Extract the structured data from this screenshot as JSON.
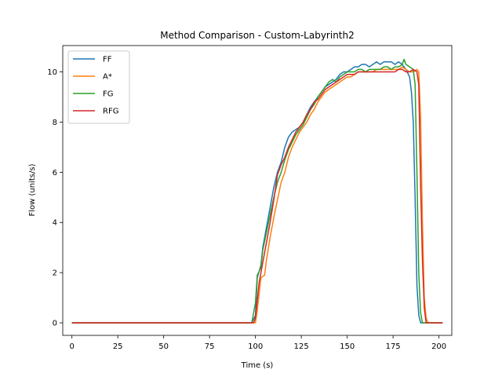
{
  "chart_data": {
    "type": "line",
    "title": "Method Comparison - Custom-Labyrinth2",
    "xlabel": "Time (s)",
    "ylabel": "Flow (units/s)",
    "xlim": [
      -5,
      207
    ],
    "ylim": [
      -0.5,
      11.05
    ],
    "xticks": [
      0,
      25,
      50,
      75,
      100,
      125,
      150,
      175,
      200
    ],
    "yticks": [
      0,
      2,
      4,
      6,
      8,
      10
    ],
    "grid": false,
    "legend_position": "top-left",
    "series": [
      {
        "name": "FF",
        "color": "#1f77b4",
        "points": [
          [
            0,
            0
          ],
          [
            98,
            0
          ],
          [
            100,
            0.3
          ],
          [
            101,
            1.8
          ],
          [
            103,
            2.3
          ],
          [
            104,
            3.0
          ],
          [
            106,
            3.8
          ],
          [
            108,
            4.6
          ],
          [
            110,
            5.4
          ],
          [
            112,
            6.0
          ],
          [
            114,
            6.4
          ],
          [
            116,
            7.0
          ],
          [
            118,
            7.4
          ],
          [
            120,
            7.6
          ],
          [
            122,
            7.7
          ],
          [
            124,
            7.8
          ],
          [
            126,
            8.0
          ],
          [
            128,
            8.3
          ],
          [
            130,
            8.6
          ],
          [
            132,
            8.8
          ],
          [
            134,
            9.0
          ],
          [
            136,
            9.2
          ],
          [
            138,
            9.4
          ],
          [
            140,
            9.5
          ],
          [
            142,
            9.6
          ],
          [
            144,
            9.7
          ],
          [
            146,
            9.9
          ],
          [
            148,
            10.0
          ],
          [
            150,
            10.0
          ],
          [
            152,
            10.1
          ],
          [
            154,
            10.2
          ],
          [
            156,
            10.2
          ],
          [
            158,
            10.3
          ],
          [
            160,
            10.3
          ],
          [
            162,
            10.2
          ],
          [
            164,
            10.3
          ],
          [
            166,
            10.4
          ],
          [
            168,
            10.3
          ],
          [
            170,
            10.4
          ],
          [
            172,
            10.4
          ],
          [
            174,
            10.4
          ],
          [
            176,
            10.3
          ],
          [
            178,
            10.4
          ],
          [
            180,
            10.3
          ],
          [
            182,
            10.1
          ],
          [
            184,
            9.8
          ],
          [
            185,
            9.2
          ],
          [
            186,
            8.0
          ],
          [
            187,
            5.0
          ],
          [
            188,
            1.5
          ],
          [
            189,
            0.3
          ],
          [
            190,
            0
          ],
          [
            192,
            0
          ],
          [
            202,
            0
          ]
        ]
      },
      {
        "name": "A*",
        "color": "#ff7f0e",
        "points": [
          [
            0,
            0
          ],
          [
            100,
            0
          ],
          [
            101,
            0.5
          ],
          [
            103,
            1.8
          ],
          [
            105,
            1.9
          ],
          [
            106,
            2.5
          ],
          [
            108,
            3.4
          ],
          [
            110,
            4.2
          ],
          [
            112,
            4.9
          ],
          [
            114,
            5.6
          ],
          [
            116,
            6.0
          ],
          [
            118,
            6.6
          ],
          [
            120,
            7.0
          ],
          [
            122,
            7.3
          ],
          [
            124,
            7.6
          ],
          [
            126,
            7.8
          ],
          [
            128,
            8.0
          ],
          [
            130,
            8.3
          ],
          [
            132,
            8.5
          ],
          [
            134,
            8.8
          ],
          [
            136,
            9.0
          ],
          [
            138,
            9.2
          ],
          [
            140,
            9.3
          ],
          [
            142,
            9.4
          ],
          [
            144,
            9.5
          ],
          [
            146,
            9.6
          ],
          [
            148,
            9.7
          ],
          [
            150,
            9.8
          ],
          [
            152,
            9.8
          ],
          [
            154,
            9.9
          ],
          [
            156,
            10.0
          ],
          [
            158,
            10.0
          ],
          [
            160,
            10.0
          ],
          [
            162,
            10.0
          ],
          [
            164,
            10.0
          ],
          [
            166,
            10.1
          ],
          [
            168,
            10.1
          ],
          [
            170,
            10.1
          ],
          [
            172,
            10.1
          ],
          [
            174,
            10.1
          ],
          [
            176,
            10.1
          ],
          [
            178,
            10.1
          ],
          [
            180,
            10.2
          ],
          [
            182,
            10.1
          ],
          [
            184,
            10.0
          ],
          [
            186,
            10.0
          ],
          [
            188,
            10.1
          ],
          [
            189,
            10.0
          ],
          [
            190,
            8.2
          ],
          [
            191,
            4.0
          ],
          [
            192,
            1.0
          ],
          [
            193,
            0.2
          ],
          [
            194,
            0
          ],
          [
            202,
            0
          ]
        ]
      },
      {
        "name": "FG",
        "color": "#2ca02c",
        "points": [
          [
            0,
            0
          ],
          [
            98,
            0
          ],
          [
            100,
            0.8
          ],
          [
            101,
            1.9
          ],
          [
            103,
            2.2
          ],
          [
            104,
            2.9
          ],
          [
            106,
            3.6
          ],
          [
            108,
            4.3
          ],
          [
            110,
            5.0
          ],
          [
            112,
            5.6
          ],
          [
            114,
            6.0
          ],
          [
            116,
            6.5
          ],
          [
            118,
            6.9
          ],
          [
            120,
            7.2
          ],
          [
            122,
            7.5
          ],
          [
            124,
            7.7
          ],
          [
            126,
            7.9
          ],
          [
            128,
            8.2
          ],
          [
            130,
            8.5
          ],
          [
            132,
            8.7
          ],
          [
            134,
            9.0
          ],
          [
            136,
            9.2
          ],
          [
            138,
            9.4
          ],
          [
            140,
            9.6
          ],
          [
            142,
            9.7
          ],
          [
            144,
            9.6
          ],
          [
            146,
            9.8
          ],
          [
            148,
            9.9
          ],
          [
            150,
            10.0
          ],
          [
            152,
            10.0
          ],
          [
            154,
            10.0
          ],
          [
            156,
            10.1
          ],
          [
            158,
            10.1
          ],
          [
            160,
            10.0
          ],
          [
            162,
            10.1
          ],
          [
            164,
            10.1
          ],
          [
            166,
            10.1
          ],
          [
            168,
            10.1
          ],
          [
            170,
            10.2
          ],
          [
            172,
            10.2
          ],
          [
            174,
            10.1
          ],
          [
            176,
            10.2
          ],
          [
            178,
            10.2
          ],
          [
            180,
            10.3
          ],
          [
            181,
            10.5
          ],
          [
            182,
            10.3
          ],
          [
            184,
            10.2
          ],
          [
            186,
            10.1
          ],
          [
            187,
            9.5
          ],
          [
            188,
            6.0
          ],
          [
            189,
            2.0
          ],
          [
            190,
            0.4
          ],
          [
            191,
            0
          ],
          [
            202,
            0
          ]
        ]
      },
      {
        "name": "RFG",
        "color": "#d62728",
        "points": [
          [
            0,
            0
          ],
          [
            99,
            0
          ],
          [
            100,
            0.2
          ],
          [
            102,
            1.6
          ],
          [
            104,
            2.4
          ],
          [
            106,
            3.2
          ],
          [
            108,
            4.0
          ],
          [
            110,
            4.9
          ],
          [
            112,
            5.9
          ],
          [
            114,
            6.3
          ],
          [
            116,
            6.6
          ],
          [
            118,
            7.0
          ],
          [
            120,
            7.3
          ],
          [
            122,
            7.6
          ],
          [
            124,
            7.8
          ],
          [
            126,
            8.0
          ],
          [
            128,
            8.3
          ],
          [
            130,
            8.5
          ],
          [
            132,
            8.8
          ],
          [
            134,
            8.9
          ],
          [
            136,
            9.1
          ],
          [
            138,
            9.3
          ],
          [
            140,
            9.4
          ],
          [
            142,
            9.5
          ],
          [
            144,
            9.6
          ],
          [
            146,
            9.7
          ],
          [
            148,
            9.8
          ],
          [
            150,
            9.9
          ],
          [
            152,
            9.9
          ],
          [
            154,
            9.9
          ],
          [
            156,
            10.0
          ],
          [
            158,
            10.0
          ],
          [
            160,
            10.0
          ],
          [
            162,
            10.0
          ],
          [
            164,
            10.0
          ],
          [
            166,
            10.0
          ],
          [
            168,
            10.0
          ],
          [
            170,
            10.0
          ],
          [
            172,
            10.0
          ],
          [
            174,
            10.0
          ],
          [
            176,
            10.0
          ],
          [
            178,
            10.1
          ],
          [
            180,
            10.1
          ],
          [
            182,
            10.0
          ],
          [
            184,
            10.0
          ],
          [
            186,
            10.1
          ],
          [
            188,
            10.0
          ],
          [
            189,
            9.5
          ],
          [
            190,
            5.5
          ],
          [
            191,
            2.5
          ],
          [
            192,
            0.6
          ],
          [
            193,
            0
          ],
          [
            202,
            0
          ]
        ]
      }
    ]
  }
}
